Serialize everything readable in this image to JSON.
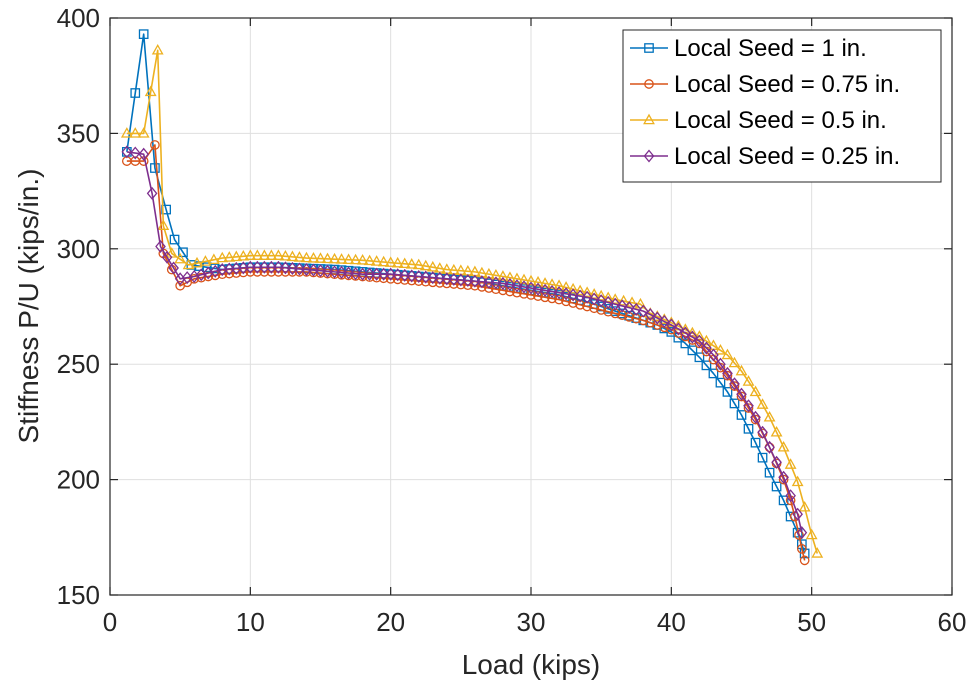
{
  "chart_data": {
    "type": "line",
    "title": "",
    "xlabel": "Load (kips)",
    "ylabel": "Stiffness P/U (kips/in.)",
    "xlim": [
      0,
      60
    ],
    "ylim": [
      150,
      400
    ],
    "xticks": [
      "0",
      "10",
      "20",
      "30",
      "40",
      "50",
      "60"
    ],
    "yticks": [
      "150",
      "200",
      "250",
      "300",
      "350",
      "400"
    ],
    "grid": true,
    "legend_position": "top-right",
    "series": [
      {
        "name": "Local Seed = 1 in.",
        "color": "#0072BD",
        "marker": "square",
        "x": [
          1.2,
          2.4,
          3.2,
          4.0,
          4.6,
          5.8,
          8,
          10,
          12,
          14,
          16,
          18,
          20,
          22,
          24,
          26,
          28,
          30,
          32,
          34,
          36,
          37.5,
          39,
          40,
          41,
          42,
          43,
          44,
          45,
          46,
          47,
          48,
          48.5,
          49,
          49.3,
          49.5
        ],
        "y": [
          342,
          393,
          335,
          317,
          304,
          293,
          291,
          292,
          292,
          291.5,
          291,
          290,
          289,
          288,
          287,
          286,
          284,
          282,
          280,
          277,
          273,
          270,
          267,
          264,
          259,
          253,
          246,
          238,
          228,
          216,
          203,
          191,
          184,
          177,
          172,
          168
        ]
      },
      {
        "name": "Local Seed = 0.75 in.",
        "color": "#D95319",
        "marker": "circle",
        "x": [
          1.2,
          2.4,
          3.2,
          3.8,
          5.0,
          6,
          8,
          10,
          12,
          14,
          16,
          18,
          20,
          22,
          24,
          26,
          28,
          30,
          32,
          34,
          36,
          38,
          40,
          42,
          43,
          44,
          45,
          46,
          47,
          48,
          48.5,
          48.8,
          49.1,
          49.3,
          49.5
        ],
        "y": [
          338,
          338,
          345,
          298,
          284,
          287,
          289,
          290,
          290,
          290,
          289,
          288,
          287,
          286,
          285,
          284,
          282,
          280,
          278,
          275,
          272,
          269,
          265,
          259,
          252,
          245,
          236,
          226,
          214,
          200,
          191,
          184,
          176,
          170,
          165
        ]
      },
      {
        "name": "Local Seed = 0.5 in.",
        "color": "#EDB120",
        "marker": "triangle",
        "x": [
          1.2,
          2.4,
          3.4,
          3.8,
          4.4,
          5.6,
          8,
          10,
          12,
          14,
          16,
          18,
          20,
          22,
          24,
          26,
          28,
          30,
          32,
          34,
          36,
          37.8,
          38.5,
          40,
          42,
          44,
          45,
          46,
          47,
          48,
          49,
          49.5,
          50,
          50.4
        ],
        "y": [
          350,
          350,
          386,
          310,
          298,
          293,
          296,
          297,
          297,
          296,
          295.5,
          295,
          294,
          293,
          291,
          290,
          288,
          286,
          284,
          281,
          278,
          276,
          272,
          268,
          262,
          254,
          247,
          238,
          227,
          214,
          199,
          188,
          176,
          168
        ]
      },
      {
        "name": "Local Seed = 0.25 in.",
        "color": "#7E2F8E",
        "marker": "diamond",
        "x": [
          1.2,
          2.4,
          3.0,
          3.6,
          5.0,
          6,
          8,
          10,
          12,
          14,
          16,
          18,
          20,
          22,
          24,
          26,
          28,
          30,
          32,
          34,
          36,
          38,
          40,
          42,
          43,
          44,
          45,
          46,
          47,
          48,
          48.5,
          49,
          49.3
        ],
        "y": [
          342,
          341,
          324,
          301,
          287,
          288,
          291,
          292,
          292,
          291,
          290,
          289,
          289,
          288,
          287,
          286,
          285,
          283,
          281,
          279,
          276,
          273,
          267,
          260,
          254,
          246,
          237,
          227,
          214,
          201,
          193,
          185,
          177
        ]
      }
    ]
  }
}
